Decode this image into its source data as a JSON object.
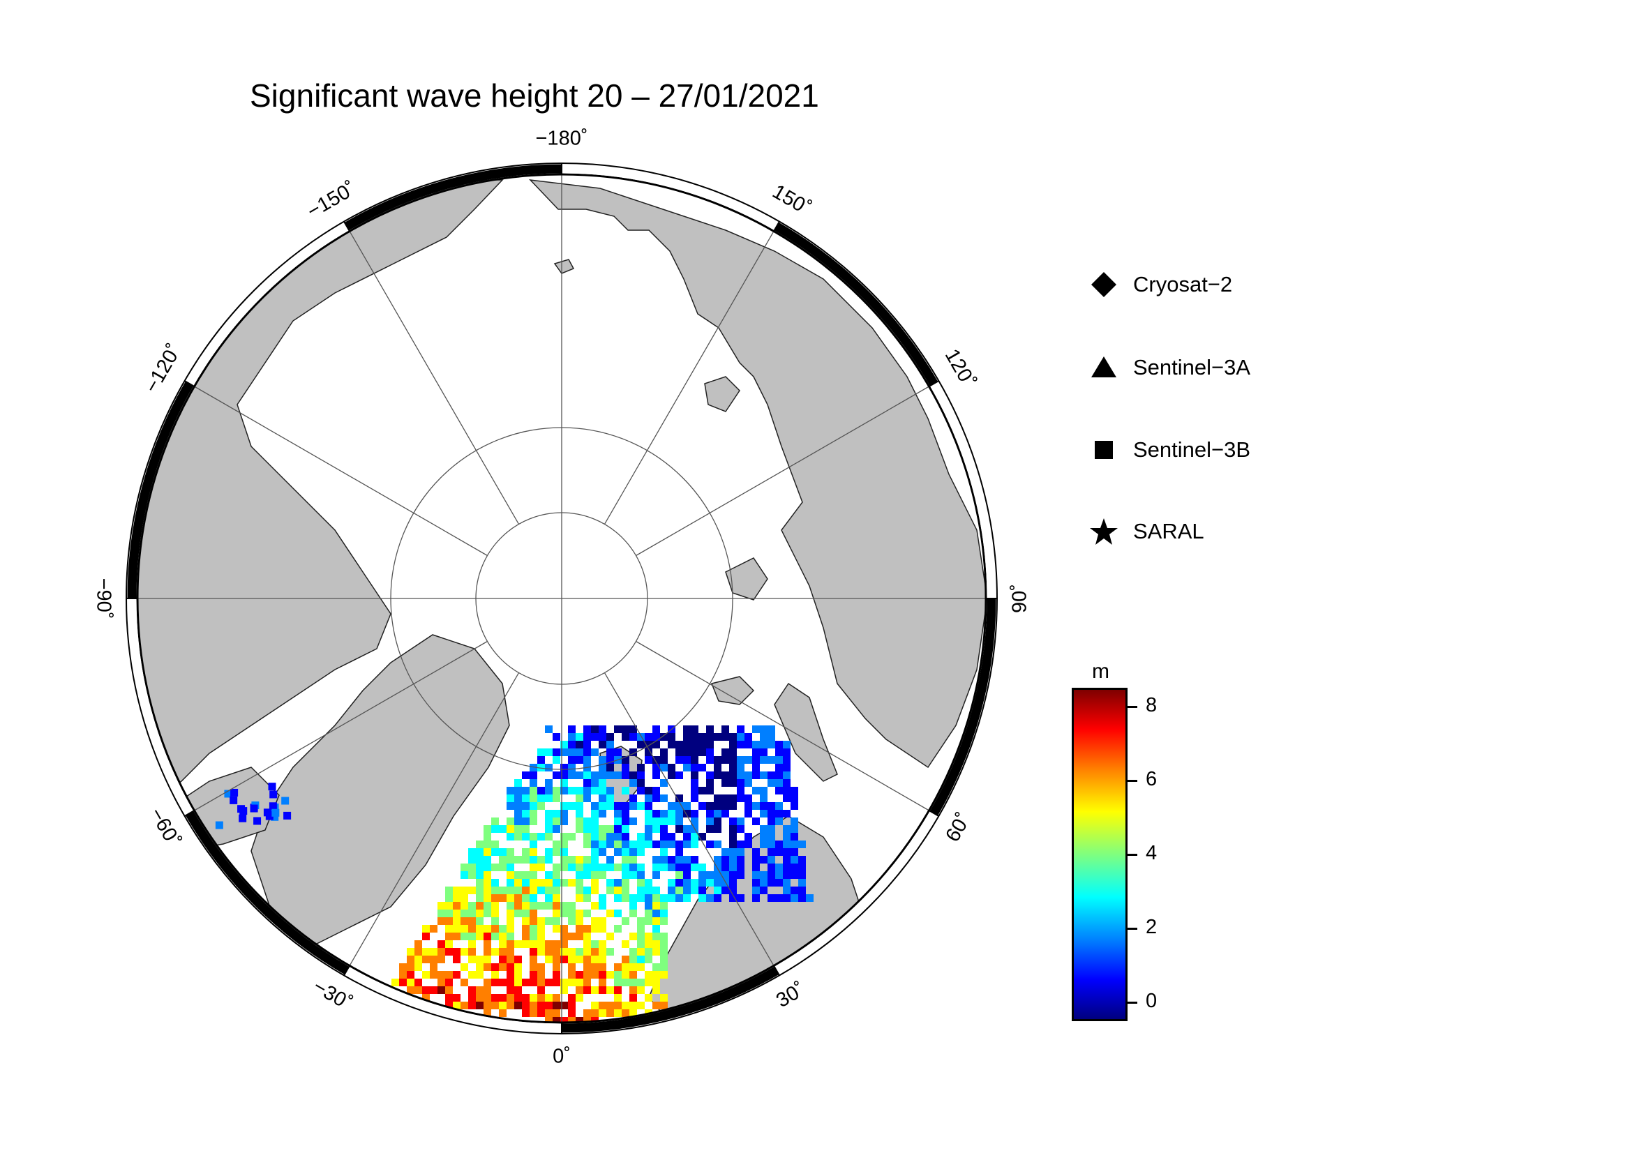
{
  "title": "Significant wave height 20 – 27/01/2021",
  "longitude_labels": [
    {
      "text": "−180˚",
      "lon": 180
    },
    {
      "text": "150˚",
      "lon": 150
    },
    {
      "text": "120˚",
      "lon": 120
    },
    {
      "text": "90˚",
      "lon": 90
    },
    {
      "text": "60˚",
      "lon": 60
    },
    {
      "text": "30˚",
      "lon": 30
    },
    {
      "text": "0˚",
      "lon": 0
    },
    {
      "text": "−30˚",
      "lon": -30
    },
    {
      "text": "−60˚",
      "lon": -60
    },
    {
      "text": "−90˚",
      "lon": -90
    },
    {
      "text": "−120˚",
      "lon": -120
    },
    {
      "text": "−150˚",
      "lon": -150
    }
  ],
  "legend": {
    "items": [
      {
        "label": "Cryosat−2",
        "symbol": "diamond"
      },
      {
        "label": "Sentinel−3A",
        "symbol": "triangle"
      },
      {
        "label": "Sentinel−3B",
        "symbol": "square"
      },
      {
        "label": "SARAL",
        "symbol": "star"
      }
    ]
  },
  "colorbar": {
    "unit": "m",
    "ticks": [
      "8",
      "6",
      "4",
      "2",
      "0"
    ],
    "tick_values": [
      8,
      6,
      4,
      2,
      0
    ],
    "range": [
      -0.5,
      8.5
    ],
    "colors": [
      "#00007f",
      "#0000ff",
      "#007fff",
      "#00ffff",
      "#7fff7f",
      "#ffff00",
      "#ff7f00",
      "#ff0000",
      "#7f0000"
    ]
  },
  "colors": {
    "land": "#c0c0c0",
    "ocean_ice": "#ffffff",
    "graticule": "#555555",
    "frame": "#000000"
  }
}
